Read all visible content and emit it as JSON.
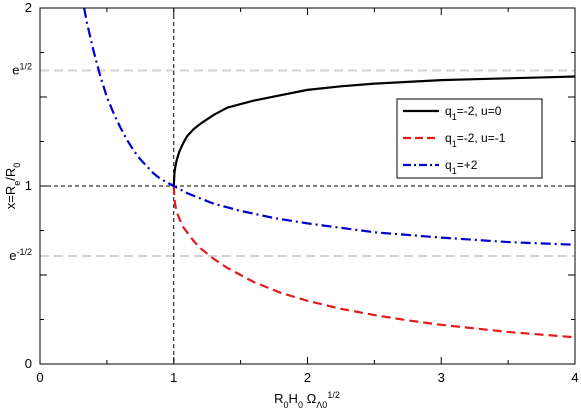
{
  "chart_data": {
    "type": "line",
    "xlabel": {
      "parts": [
        {
          "t": "R",
          "s": "n"
        },
        {
          "t": "0",
          "s": "sub"
        },
        {
          "t": "H",
          "s": "n"
        },
        {
          "t": "0",
          "s": "sub"
        },
        {
          "t": " Ω",
          "s": "n"
        },
        {
          "t": "Λ0",
          "s": "sub"
        },
        {
          "t": "1/2",
          "s": "sup"
        }
      ]
    },
    "ylabel": {
      "parts": [
        {
          "t": "x=R",
          "s": "n"
        },
        {
          "t": "e",
          "s": "sub"
        },
        {
          "t": "/R",
          "s": "n"
        },
        {
          "t": "0",
          "s": "sub"
        }
      ]
    },
    "xlim": [
      0,
      4
    ],
    "ylim": [
      0,
      2
    ],
    "x_ticks": [
      {
        "value": 0,
        "label": "0"
      },
      {
        "value": 1,
        "label": "1"
      },
      {
        "value": 2,
        "label": "2"
      },
      {
        "value": 3,
        "label": "3"
      },
      {
        "value": 4,
        "label": "4"
      }
    ],
    "y_ticks": [
      {
        "value": 0,
        "base": "0",
        "sup": ""
      },
      {
        "value": 0.6065,
        "base": "e",
        "sup": "-1/2"
      },
      {
        "value": 1,
        "base": "1",
        "sup": ""
      },
      {
        "value": 1.6487,
        "base": "e",
        "sup": "1/2"
      },
      {
        "value": 2,
        "base": "2",
        "sup": ""
      }
    ],
    "reference_lines": [
      {
        "orientation": "horizontal",
        "value": 1.6487,
        "color": "#d3d3d3",
        "style": "dashed-long"
      },
      {
        "orientation": "horizontal",
        "value": 0.6065,
        "color": "#d3d3d3",
        "style": "dashed-long"
      },
      {
        "orientation": "horizontal",
        "value": 1,
        "color": "#000000",
        "style": "dashed-short"
      },
      {
        "orientation": "vertical",
        "value": 1,
        "color": "#000000",
        "style": "dashed-short"
      }
    ],
    "series": [
      {
        "id": "q1-neg2-u0",
        "label_parts": [
          {
            "t": "q",
            "s": "n"
          },
          {
            "t": "1",
            "s": "sub"
          },
          {
            "t": "=-2, u=0",
            "s": "n"
          }
        ],
        "color": "#000000",
        "style": "solid",
        "points": [
          [
            1.0,
            1.0
          ],
          [
            1.005,
            1.07
          ],
          [
            1.01,
            1.1
          ],
          [
            1.02,
            1.14
          ],
          [
            1.04,
            1.19
          ],
          [
            1.07,
            1.24
          ],
          [
            1.1,
            1.28
          ],
          [
            1.15,
            1.32
          ],
          [
            1.2,
            1.35
          ],
          [
            1.3,
            1.4
          ],
          [
            1.4,
            1.44
          ],
          [
            1.5,
            1.46
          ],
          [
            1.6,
            1.48
          ],
          [
            1.8,
            1.51
          ],
          [
            2.0,
            1.54
          ],
          [
            2.25,
            1.56
          ],
          [
            2.5,
            1.575
          ],
          [
            2.75,
            1.585
          ],
          [
            3.0,
            1.595
          ],
          [
            3.25,
            1.6
          ],
          [
            3.5,
            1.605
          ],
          [
            3.75,
            1.61
          ],
          [
            4.0,
            1.615
          ]
        ]
      },
      {
        "id": "q1-neg2-uneg1",
        "label_parts": [
          {
            "t": "q",
            "s": "n"
          },
          {
            "t": "1",
            "s": "sub"
          },
          {
            "t": "=-2, u=-1",
            "s": "n"
          }
        ],
        "color": "#e41a1c",
        "style": "dashed",
        "points": [
          [
            1.0,
            1.0
          ],
          [
            1.005,
            0.93
          ],
          [
            1.01,
            0.9
          ],
          [
            1.02,
            0.86
          ],
          [
            1.04,
            0.82
          ],
          [
            1.07,
            0.77
          ],
          [
            1.1,
            0.74
          ],
          [
            1.15,
            0.69
          ],
          [
            1.2,
            0.65
          ],
          [
            1.3,
            0.59
          ],
          [
            1.4,
            0.54
          ],
          [
            1.5,
            0.5
          ],
          [
            1.6,
            0.46
          ],
          [
            1.8,
            0.4
          ],
          [
            2.0,
            0.355
          ],
          [
            2.25,
            0.31
          ],
          [
            2.5,
            0.275
          ],
          [
            2.75,
            0.245
          ],
          [
            3.0,
            0.22
          ],
          [
            3.25,
            0.2
          ],
          [
            3.5,
            0.18
          ],
          [
            3.75,
            0.165
          ],
          [
            4.0,
            0.15
          ]
        ]
      },
      {
        "id": "q1-pos2",
        "label_parts": [
          {
            "t": "q",
            "s": "n"
          },
          {
            "t": "1",
            "s": "sub"
          },
          {
            "t": "=+2",
            "s": "n"
          }
        ],
        "color": "#0000cc",
        "style": "dashdot",
        "points": [
          [
            0.33,
            2.0
          ],
          [
            0.35,
            1.92
          ],
          [
            0.4,
            1.76
          ],
          [
            0.45,
            1.62
          ],
          [
            0.5,
            1.5
          ],
          [
            0.55,
            1.41
          ],
          [
            0.6,
            1.33
          ],
          [
            0.65,
            1.26
          ],
          [
            0.7,
            1.2
          ],
          [
            0.75,
            1.15
          ],
          [
            0.8,
            1.11
          ],
          [
            0.85,
            1.07
          ],
          [
            0.9,
            1.04
          ],
          [
            0.95,
            1.02
          ],
          [
            1.0,
            1.0
          ],
          [
            1.1,
            0.96
          ],
          [
            1.2,
            0.93
          ],
          [
            1.3,
            0.9
          ],
          [
            1.4,
            0.88
          ],
          [
            1.5,
            0.86
          ],
          [
            1.75,
            0.82
          ],
          [
            2.0,
            0.79
          ],
          [
            2.5,
            0.74
          ],
          [
            3.0,
            0.71
          ],
          [
            3.5,
            0.685
          ],
          [
            4.0,
            0.67
          ]
        ]
      }
    ],
    "legend": {
      "placement": "upper-right",
      "border": true
    }
  }
}
